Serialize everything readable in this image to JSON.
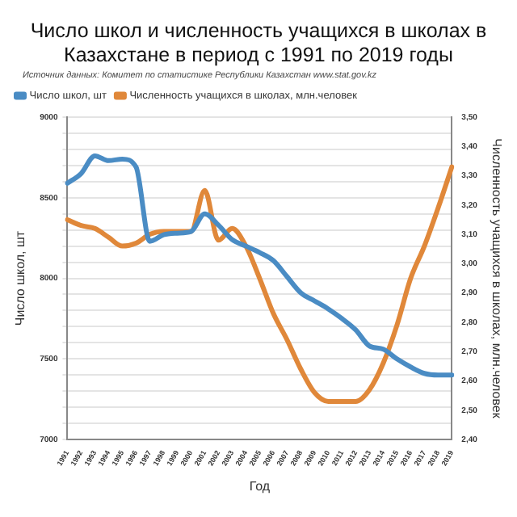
{
  "chart_data": {
    "type": "line",
    "title": "Число школ и численность учащихся в школах в Казахстане в период с 1991 по 2019 годы",
    "annotations": [
      "Источник данных: Комитет по статистике Республики Казахстан www.stat.gov.kz"
    ],
    "xlabel": "Год",
    "ylabel": "Число школ, шт",
    "y2label": "Численность учащихся в школах, млн.человек",
    "categories": [
      "1991",
      "1992",
      "1993",
      "1994",
      "1995",
      "1996",
      "1997",
      "1998",
      "1999",
      "2000",
      "2001",
      "2002",
      "2003",
      "2004",
      "2005",
      "2006",
      "2007",
      "2008",
      "2009",
      "2010",
      "2011",
      "2012",
      "2013",
      "2014",
      "2015",
      "2016",
      "2017",
      "2018",
      "2019"
    ],
    "series": [
      {
        "name": "Число школ, шт",
        "color": "#4a8cc4",
        "values": [
          8590,
          8650,
          8760,
          8730,
          8740,
          8690,
          8230,
          8270,
          8280,
          8290,
          8400,
          8330,
          8240,
          8200,
          8160,
          8110,
          8010,
          7910,
          7860,
          7810,
          7750,
          7680,
          7580,
          7560,
          7500,
          7450,
          7410,
          7400,
          7400
        ]
      },
      {
        "name": "Численность учащихся в школах, млн.человек",
        "color": "#e0883a",
        "axis": "y2",
        "values": [
          3.15,
          3.13,
          3.12,
          3.09,
          3.06,
          3.07,
          3.1,
          3.11,
          3.11,
          3.11,
          3.25,
          3.08,
          3.12,
          3.06,
          2.95,
          2.83,
          2.74,
          2.64,
          2.56,
          2.53,
          2.53,
          2.53,
          2.57,
          2.66,
          2.79,
          2.95,
          3.06,
          3.19,
          3.33
        ]
      }
    ],
    "ylim": [
      7000,
      9000
    ],
    "yticks": [
      7000,
      {
        "value": 7100,
        "label": null
      },
      {
        "value": 7200,
        "label": null
      },
      {
        "value": 7300,
        "label": null
      },
      {
        "value": 7400,
        "label": null
      },
      7500,
      {
        "value": 7600,
        "label": null
      },
      {
        "value": 7700,
        "label": null
      },
      {
        "value": 7800,
        "label": null
      },
      {
        "value": 7900,
        "label": null
      },
      8000,
      {
        "value": 8100,
        "label": null
      },
      {
        "value": 8200,
        "label": null
      },
      {
        "value": 8300,
        "label": null
      },
      {
        "value": 8400,
        "label": null
      },
      8500,
      {
        "value": 8600,
        "label": null
      },
      {
        "value": 8700,
        "label": null
      },
      {
        "value": 8800,
        "label": null
      },
      {
        "value": 8900,
        "label": null
      },
      9000
    ],
    "y2lim": [
      2.4,
      3.5
    ],
    "y2ticks": [
      {
        "value": 2.4,
        "label": "2,40"
      },
      {
        "value": 2.5,
        "label": "2,50"
      },
      {
        "value": 2.6,
        "label": "2,60"
      },
      {
        "value": 2.7,
        "label": "2,70"
      },
      {
        "value": 2.8,
        "label": "2,80"
      },
      {
        "value": 2.9,
        "label": "2,90"
      },
      {
        "value": 3.0,
        "label": "3,00"
      },
      {
        "value": 3.1,
        "label": "3,10"
      },
      {
        "value": 3.2,
        "label": "3,20"
      },
      {
        "value": 3.3,
        "label": "3,30"
      },
      {
        "value": 3.4,
        "label": "3,40"
      },
      {
        "value": 3.5,
        "label": "3,50"
      }
    ],
    "grid": "y",
    "legend": "top left",
    "marker": "none",
    "line_style": "solid"
  }
}
